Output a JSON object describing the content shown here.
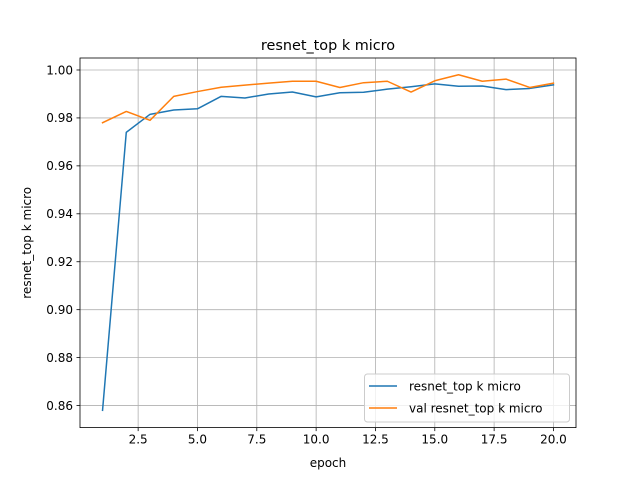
{
  "chart_data": {
    "type": "line",
    "title": "resnet_top k micro",
    "xlabel": "epoch",
    "ylabel": "resnet_top k micro",
    "xlim": [
      0.05,
      20.95
    ],
    "ylim": [
      0.8508,
      1.005
    ],
    "xticks": [
      2.5,
      5.0,
      7.5,
      10.0,
      12.5,
      15.0,
      17.5,
      20.0
    ],
    "xtick_labels": [
      "2.5",
      "5.0",
      "7.5",
      "10.0",
      "12.5",
      "15.0",
      "17.5",
      "20.0"
    ],
    "yticks": [
      0.86,
      0.88,
      0.9,
      0.92,
      0.94,
      0.96,
      0.98,
      1.0
    ],
    "ytick_labels": [
      "0.86",
      "0.88",
      "0.90",
      "0.92",
      "0.94",
      "0.96",
      "0.98",
      "1.00"
    ],
    "grid": true,
    "legend_position": "bottom-right",
    "x": [
      1,
      2,
      3,
      4,
      5,
      6,
      7,
      8,
      9,
      10,
      11,
      12,
      13,
      14,
      15,
      16,
      17,
      18,
      19,
      20
    ],
    "series": [
      {
        "name": "resnet_top k micro",
        "color": "#1f77b4",
        "values": [
          0.858,
          0.974,
          0.9815,
          0.9833,
          0.9838,
          0.989,
          0.9883,
          0.99,
          0.9908,
          0.9888,
          0.9905,
          0.9907,
          0.992,
          0.993,
          0.9942,
          0.9932,
          0.9933,
          0.9918,
          0.9923,
          0.9938
        ]
      },
      {
        "name": "val resnet_top k micro",
        "color": "#ff7f0e",
        "values": [
          0.978,
          0.9827,
          0.979,
          0.989,
          0.991,
          0.9928,
          0.9937,
          0.9945,
          0.9953,
          0.9953,
          0.9927,
          0.9947,
          0.9953,
          0.9908,
          0.9955,
          0.998,
          0.9953,
          0.9962,
          0.9927,
          0.9945
        ]
      }
    ]
  }
}
